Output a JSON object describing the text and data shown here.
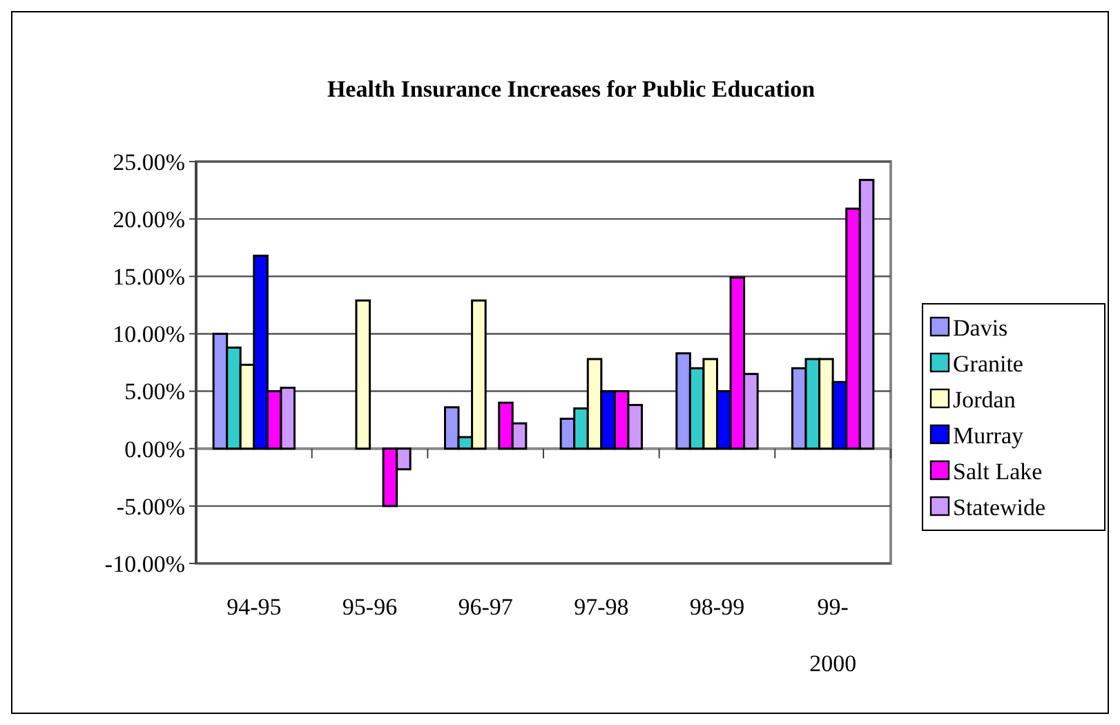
{
  "chart_data": {
    "type": "bar",
    "title": "Health Insurance Increases for Public Education",
    "categories": [
      "94-95",
      "95-96",
      "96-97",
      "97-98",
      "98-99",
      "99-2000"
    ],
    "series": [
      {
        "name": "Davis",
        "color": "#9999ff",
        "values": [
          10,
          null,
          3.6,
          2.6,
          8.3,
          7.0
        ]
      },
      {
        "name": "Granite",
        "color": "#33cccc",
        "values": [
          8.8,
          null,
          1.0,
          3.5,
          7.0,
          7.8
        ]
      },
      {
        "name": "Jordan",
        "color": "#ffffcc",
        "values": [
          7.3,
          12.9,
          12.9,
          7.8,
          7.8,
          7.8
        ]
      },
      {
        "name": "Murray",
        "color": "#0000ff",
        "values": [
          16.8,
          null,
          null,
          5,
          5,
          5.8
        ]
      },
      {
        "name": "Salt Lake",
        "color": "#ff00ff",
        "values": [
          5,
          -5,
          4.0,
          5,
          14.9,
          20.9
        ]
      },
      {
        "name": "Statewide",
        "color": "#cc99ff",
        "values": [
          5.3,
          -1.8,
          2.2,
          3.8,
          6.5,
          23.4
        ]
      }
    ],
    "ylim": [
      -10,
      25
    ],
    "yticks": [
      {
        "value": -10,
        "label": "-10.00%"
      },
      {
        "value": -5,
        "label": "-5.00%"
      },
      {
        "value": 0,
        "label": "0.00%"
      },
      {
        "value": 5,
        "label": "5.00%"
      },
      {
        "value": 10,
        "label": "10.00%"
      },
      {
        "value": 15,
        "label": "15.00%"
      },
      {
        "value": 20,
        "label": "20.00%"
      },
      {
        "value": 25,
        "label": "25.00%"
      }
    ],
    "grid": "y",
    "legend": "right"
  }
}
